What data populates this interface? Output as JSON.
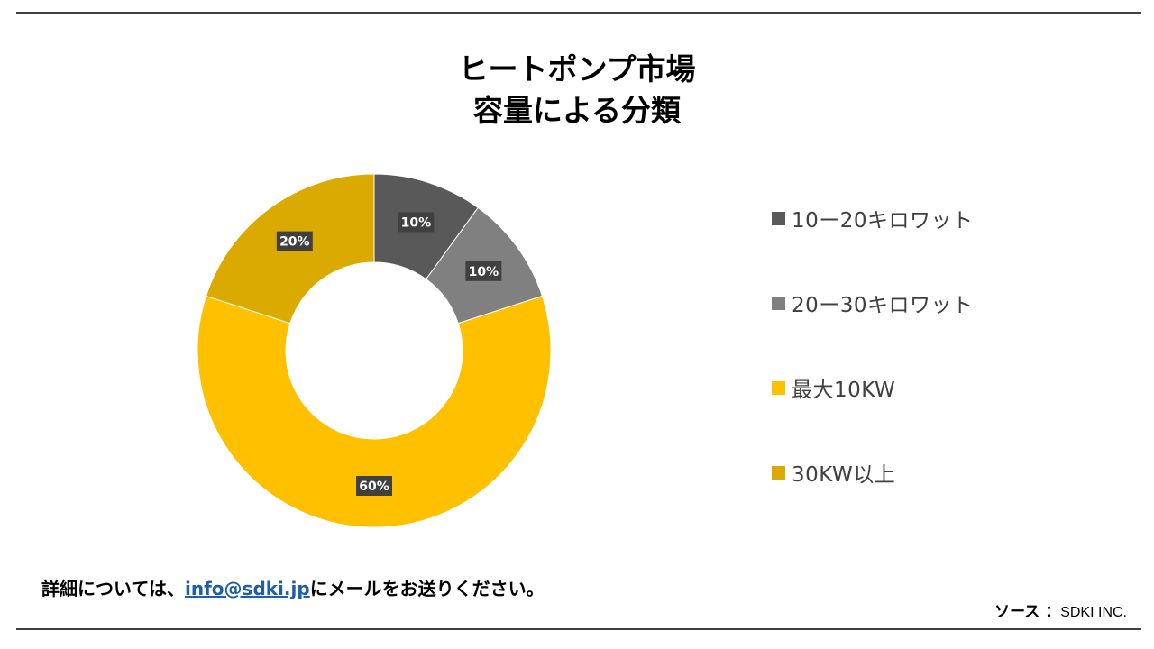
{
  "header": {
    "title_line1": "ヒートポンプ市場",
    "title_line2": "容量による分類"
  },
  "chart_data": {
    "type": "pie",
    "title": "ヒートポンプ市場 容量による分類",
    "categories": [
      "10ー20キロワット",
      "20ー30キロワット",
      "最大10KW",
      "30KW以上"
    ],
    "values": [
      10,
      10,
      60,
      20
    ],
    "data_labels": [
      "10%",
      "10%",
      "60%",
      "20%"
    ],
    "colors": [
      "#595959",
      "#808080",
      "#FFC000",
      "#DBAA00"
    ],
    "donut": true,
    "legend_position": "right"
  },
  "footer": {
    "contact_prefix": "詳細については、",
    "contact_email": "info@sdki.jp",
    "contact_suffix": "にメールをお送りください。",
    "source_label": "ソース ：",
    "source_value": "SDKI INC."
  }
}
